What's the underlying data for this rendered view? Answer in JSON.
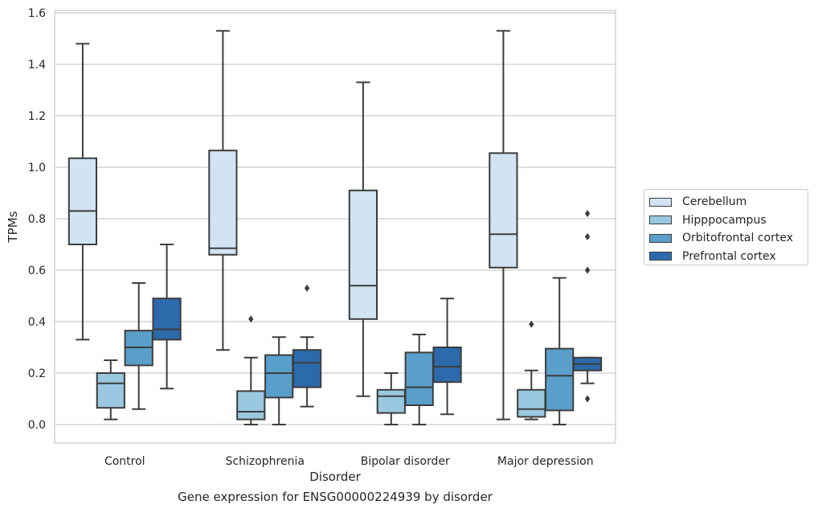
{
  "chart_data": {
    "type": "boxplot",
    "ylabel": "TPMs",
    "xlabel": "Disorder",
    "caption": "Gene expression for ENSG00000224939 by disorder",
    "ylim": [
      -0.07,
      1.61
    ],
    "yticks": [
      0.0,
      0.2,
      0.4,
      0.6,
      0.8,
      1.0,
      1.2,
      1.4,
      1.6
    ],
    "ytick_labels": [
      "0.0",
      "0.2",
      "0.4",
      "0.6",
      "0.8",
      "1.0",
      "1.2",
      "1.4",
      "1.6"
    ],
    "grid": "horizontal",
    "legend_position": "right",
    "categories": [
      "Control",
      "Schizophrenia",
      "Bipolar disorder",
      "Major depression"
    ],
    "series": [
      {
        "name": "Cerebellum",
        "color": "#d2e3f3",
        "boxes": [
          {
            "whislo": 0.33,
            "q1": 0.7,
            "med": 0.83,
            "q3": 1.035,
            "whishi": 1.48,
            "fliers": []
          },
          {
            "whislo": 0.29,
            "q1": 0.66,
            "med": 0.685,
            "q3": 1.065,
            "whishi": 1.53,
            "fliers": []
          },
          {
            "whislo": 0.11,
            "q1": 0.41,
            "med": 0.54,
            "q3": 0.91,
            "whishi": 1.33,
            "fliers": []
          },
          {
            "whislo": 0.02,
            "q1": 0.61,
            "med": 0.74,
            "q3": 1.055,
            "whishi": 1.53,
            "fliers": []
          }
        ]
      },
      {
        "name": "Hipppocampus",
        "color": "#9ac8e0",
        "boxes": [
          {
            "whislo": 0.02,
            "q1": 0.065,
            "med": 0.16,
            "q3": 0.2,
            "whishi": 0.25,
            "fliers": []
          },
          {
            "whislo": 0.0,
            "q1": 0.02,
            "med": 0.05,
            "q3": 0.13,
            "whishi": 0.26,
            "fliers": [
              0.41
            ]
          },
          {
            "whislo": 0.0,
            "q1": 0.045,
            "med": 0.11,
            "q3": 0.135,
            "whishi": 0.2,
            "fliers": []
          },
          {
            "whislo": 0.02,
            "q1": 0.03,
            "med": 0.06,
            "q3": 0.135,
            "whishi": 0.21,
            "fliers": [
              0.39
            ]
          }
        ]
      },
      {
        "name": "Orbitofrontal cortex",
        "color": "#5a9fcb",
        "boxes": [
          {
            "whislo": 0.06,
            "q1": 0.23,
            "med": 0.3,
            "q3": 0.365,
            "whishi": 0.55,
            "fliers": []
          },
          {
            "whislo": 0.0,
            "q1": 0.105,
            "med": 0.2,
            "q3": 0.27,
            "whishi": 0.34,
            "fliers": []
          },
          {
            "whislo": 0.0,
            "q1": 0.075,
            "med": 0.145,
            "q3": 0.28,
            "whishi": 0.35,
            "fliers": []
          },
          {
            "whislo": 0.0,
            "q1": 0.055,
            "med": 0.19,
            "q3": 0.295,
            "whishi": 0.57,
            "fliers": []
          }
        ]
      },
      {
        "name": "Prefrontal cortex",
        "color": "#2c6aac",
        "boxes": [
          {
            "whislo": 0.14,
            "q1": 0.33,
            "med": 0.37,
            "q3": 0.49,
            "whishi": 0.7,
            "fliers": []
          },
          {
            "whislo": 0.07,
            "q1": 0.145,
            "med": 0.24,
            "q3": 0.29,
            "whishi": 0.34,
            "fliers": [
              0.53
            ]
          },
          {
            "whislo": 0.04,
            "q1": 0.165,
            "med": 0.225,
            "q3": 0.3,
            "whishi": 0.49,
            "fliers": []
          },
          {
            "whislo": 0.16,
            "q1": 0.21,
            "med": 0.235,
            "q3": 0.26,
            "whishi": 0.26,
            "fliers": [
              0.1,
              0.6,
              0.73,
              0.82
            ]
          }
        ]
      }
    ]
  }
}
